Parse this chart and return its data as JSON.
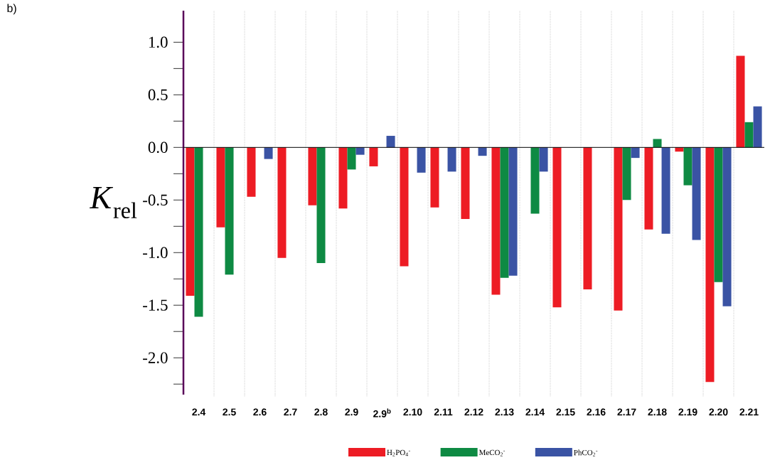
{
  "chart_data": {
    "type": "bar",
    "ylabel": "*K*$_{rel}$",
    "annotations": [
      "b)"
    ],
    "categories": [
      "2.4",
      "2.5",
      "2.6",
      "2.7",
      "2.8",
      "2.9",
      "2.9$^{b}$",
      "2.10",
      "2.11",
      "2.12",
      "2.13",
      "2.14",
      "2.15",
      "2.16",
      "2.17",
      "2.18",
      "2.19",
      "2.20",
      "2.21"
    ],
    "series": [
      {
        "name": "H$_{2}$PO$_{4}$$^{-}$",
        "color": "#ed1c24",
        "values": [
          -1.41,
          -0.76,
          -0.47,
          -1.05,
          -0.55,
          -0.58,
          -0.18,
          -1.13,
          -0.57,
          -0.68,
          -1.4,
          null,
          -1.52,
          -1.35,
          -1.55,
          -0.78,
          -0.04,
          -2.23,
          0.87
        ]
      },
      {
        "name": "MeCO$_{2}$$^{-}$",
        "color": "#0e8a43",
        "values": [
          -1.61,
          -1.21,
          null,
          null,
          -1.1,
          -0.21,
          null,
          null,
          null,
          null,
          -1.24,
          -0.63,
          null,
          null,
          -0.5,
          0.08,
          -0.36,
          -1.28,
          0.24
        ]
      },
      {
        "name": "PhCO$_{2}$$^{-}$",
        "color": "#3a53a4",
        "values": [
          null,
          null,
          -0.11,
          null,
          null,
          -0.07,
          0.11,
          -0.24,
          -0.23,
          -0.08,
          -1.22,
          -0.23,
          null,
          null,
          -0.1,
          -0.82,
          -0.88,
          -1.51,
          0.39
        ]
      }
    ],
    "ylim": [
      -2.35,
      1.3
    ],
    "yticks": [
      {
        "value": -2.25,
        "label": null
      },
      {
        "value": -2.0,
        "label": "-2.0"
      },
      {
        "value": -1.75,
        "label": null
      },
      {
        "value": -1.5,
        "label": "-1.5"
      },
      {
        "value": -1.25,
        "label": null
      },
      {
        "value": -1.0,
        "label": "-1.0"
      },
      {
        "value": -0.75,
        "label": null
      },
      {
        "value": -0.5,
        "label": "-0.5"
      },
      {
        "value": -0.25,
        "label": null
      },
      {
        "value": 0.0,
        "label": "0.0"
      },
      {
        "value": 0.25,
        "label": null
      },
      {
        "value": 0.5,
        "label": "0.5"
      },
      {
        "value": 0.75,
        "label": null
      },
      {
        "value": 1.0,
        "label": "1.0"
      }
    ],
    "grid": "x",
    "legend": "bottom"
  }
}
